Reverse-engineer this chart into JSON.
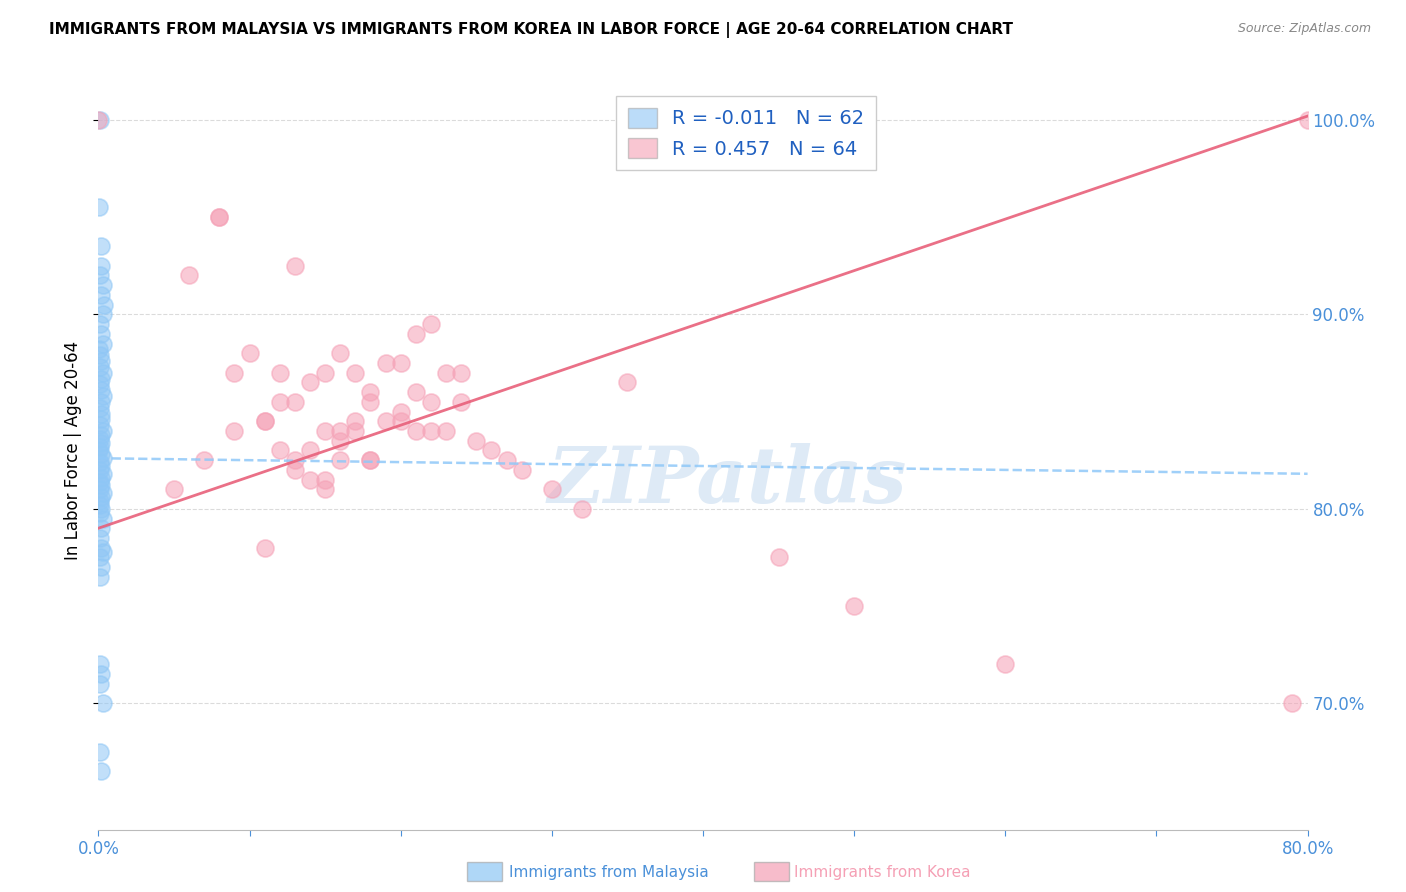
{
  "title": "IMMIGRANTS FROM MALAYSIA VS IMMIGRANTS FROM KOREA IN LABOR FORCE | AGE 20-64 CORRELATION CHART",
  "source": "Source: ZipAtlas.com",
  "ylabel_left": "In Labor Force | Age 20-64",
  "xlim": [
    0.0,
    0.8
  ],
  "ylim": [
    0.635,
    1.025
  ],
  "yticks_right": [
    0.7,
    0.8,
    0.9,
    1.0
  ],
  "ytick_right_labels": [
    "70.0%",
    "80.0%",
    "90.0%",
    "100.0%"
  ],
  "malaysia_R": -0.011,
  "malaysia_N": 62,
  "korea_R": 0.457,
  "korea_N": 64,
  "malaysia_color": "#8EC6F5",
  "korea_color": "#F5A0B5",
  "malaysia_trend_color": "#90C8F8",
  "korea_trend_color": "#E8607A",
  "watermark": "ZIPatlas",
  "watermark_color": "#C8DCF0",
  "grid_color": "#CCCCCC",
  "background_color": "#FFFFFF",
  "axis_label_color": "#4A90D9",
  "legend_R_color": "#000000",
  "legend_N_color": "#2060C0",
  "legend_val_malaysia_color": "#2060C0",
  "legend_val_korea_color": "#2060C0",
  "legend_malaysia_label": "Immigrants from Malaysia",
  "legend_korea_label": "Immigrants from Korea",
  "malaysia_x": [
    0.001,
    0.0005,
    0.002,
    0.0015,
    0.001,
    0.003,
    0.002,
    0.004,
    0.003,
    0.001,
    0.002,
    0.003,
    0.0005,
    0.001,
    0.002,
    0.001,
    0.003,
    0.002,
    0.001,
    0.002,
    0.003,
    0.002,
    0.001,
    0.0015,
    0.002,
    0.001,
    0.003,
    0.002,
    0.001,
    0.002,
    0.001,
    0.0005,
    0.002,
    0.003,
    0.001,
    0.002,
    0.001,
    0.003,
    0.002,
    0.001,
    0.002,
    0.001,
    0.003,
    0.002,
    0.001,
    0.001,
    0.002,
    0.001,
    0.003,
    0.002,
    0.001,
    0.002,
    0.003,
    0.001,
    0.002,
    0.001,
    0.001,
    0.002,
    0.001,
    0.003,
    0.001,
    0.002
  ],
  "malaysia_y": [
    1.0,
    0.955,
    0.935,
    0.925,
    0.92,
    0.915,
    0.91,
    0.905,
    0.9,
    0.895,
    0.89,
    0.885,
    0.882,
    0.879,
    0.876,
    0.873,
    0.87,
    0.867,
    0.864,
    0.861,
    0.858,
    0.855,
    0.852,
    0.849,
    0.846,
    0.843,
    0.84,
    0.838,
    0.836,
    0.834,
    0.832,
    0.83,
    0.828,
    0.826,
    0.824,
    0.822,
    0.82,
    0.818,
    0.816,
    0.814,
    0.812,
    0.81,
    0.808,
    0.806,
    0.804,
    0.802,
    0.8,
    0.798,
    0.795,
    0.79,
    0.785,
    0.78,
    0.778,
    0.775,
    0.77,
    0.765,
    0.72,
    0.715,
    0.71,
    0.7,
    0.675,
    0.665
  ],
  "korea_x": [
    0.0,
    0.35,
    0.08,
    0.13,
    0.22,
    0.16,
    0.19,
    0.17,
    0.14,
    0.21,
    0.18,
    0.13,
    0.15,
    0.2,
    0.17,
    0.12,
    0.24,
    0.11,
    0.16,
    0.19,
    0.23,
    0.18,
    0.15,
    0.21,
    0.14,
    0.17,
    0.2,
    0.13,
    0.22,
    0.16,
    0.12,
    0.24,
    0.15,
    0.18,
    0.21,
    0.14,
    0.2,
    0.11,
    0.09,
    0.16,
    0.13,
    0.22,
    0.15,
    0.18,
    0.05,
    0.07,
    0.09,
    0.06,
    0.08,
    0.1,
    0.12,
    0.11,
    0.23,
    0.26,
    0.28,
    0.3,
    0.32,
    0.25,
    0.27,
    0.45,
    0.5,
    0.6,
    0.79,
    0.8
  ],
  "korea_y": [
    1.0,
    0.865,
    0.95,
    0.925,
    0.895,
    0.88,
    0.875,
    0.87,
    0.865,
    0.89,
    0.86,
    0.855,
    0.87,
    0.875,
    0.84,
    0.855,
    0.87,
    0.845,
    0.835,
    0.845,
    0.87,
    0.855,
    0.84,
    0.86,
    0.83,
    0.845,
    0.85,
    0.825,
    0.855,
    0.84,
    0.83,
    0.855,
    0.81,
    0.825,
    0.84,
    0.815,
    0.845,
    0.78,
    0.84,
    0.825,
    0.82,
    0.84,
    0.815,
    0.825,
    0.81,
    0.825,
    0.87,
    0.92,
    0.95,
    0.88,
    0.87,
    0.845,
    0.84,
    0.83,
    0.82,
    0.81,
    0.8,
    0.835,
    0.825,
    0.775,
    0.75,
    0.72,
    0.7,
    1.0
  ],
  "mal_trend_x": [
    0.0,
    0.8
  ],
  "mal_trend_y": [
    0.826,
    0.818
  ],
  "kor_trend_x": [
    0.0,
    0.8
  ],
  "kor_trend_y": [
    0.79,
    1.002
  ]
}
